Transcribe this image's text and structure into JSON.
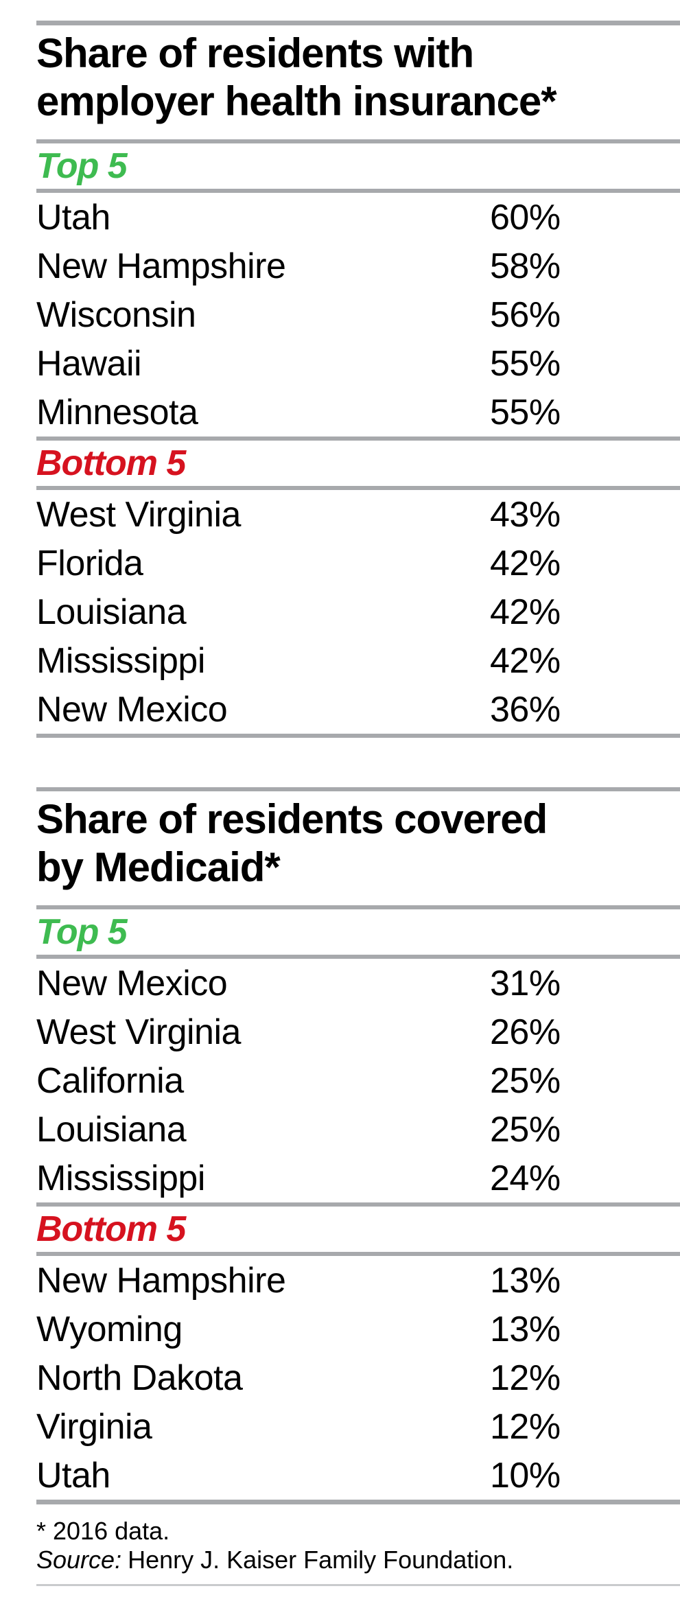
{
  "chart_data": [
    {
      "type": "table",
      "title": "Share of residents with employer health insurance*",
      "title_lines": [
        "Share of residents with",
        "employer health insurance*"
      ],
      "unit": "%",
      "groups": [
        {
          "label": "Top 5",
          "rows": [
            {
              "state": "Utah",
              "value": 60,
              "pct": "60%"
            },
            {
              "state": "New Hampshire",
              "value": 58,
              "pct": "58%"
            },
            {
              "state": "Wisconsin",
              "value": 56,
              "pct": "56%"
            },
            {
              "state": "Hawaii",
              "value": 55,
              "pct": "55%"
            },
            {
              "state": "Minnesota",
              "value": 55,
              "pct": "55%"
            }
          ]
        },
        {
          "label": "Bottom 5",
          "rows": [
            {
              "state": "West Virginia",
              "value": 43,
              "pct": "43%"
            },
            {
              "state": "Florida",
              "value": 42,
              "pct": "42%"
            },
            {
              "state": "Louisiana",
              "value": 42,
              "pct": "42%"
            },
            {
              "state": "Mississippi",
              "value": 42,
              "pct": "42%"
            },
            {
              "state": "New Mexico",
              "value": 36,
              "pct": "36%"
            }
          ]
        }
      ]
    },
    {
      "type": "table",
      "title": "Share of residents covered by Medicaid*",
      "title_lines": [
        "Share of residents covered",
        "by Medicaid*"
      ],
      "unit": "%",
      "groups": [
        {
          "label": "Top 5",
          "rows": [
            {
              "state": "New Mexico",
              "value": 31,
              "pct": "31%"
            },
            {
              "state": "West Virginia",
              "value": 26,
              "pct": "26%"
            },
            {
              "state": "California",
              "value": 25,
              "pct": "25%"
            },
            {
              "state": "Louisiana",
              "value": 25,
              "pct": "25%"
            },
            {
              "state": "Mississippi",
              "value": 24,
              "pct": "24%"
            }
          ]
        },
        {
          "label": "Bottom 5",
          "rows": [
            {
              "state": "New Hampshire",
              "value": 13,
              "pct": "13%"
            },
            {
              "state": "Wyoming",
              "value": 13,
              "pct": "13%"
            },
            {
              "state": "North Dakota",
              "value": 12,
              "pct": "12%"
            },
            {
              "state": "Virginia",
              "value": 12,
              "pct": "12%"
            },
            {
              "state": "Utah",
              "value": 10,
              "pct": "10%"
            }
          ]
        }
      ]
    }
  ],
  "footnotes": {
    "note": "* 2016 data.",
    "source_label": "Source:",
    "source_text": "Henry J. Kaiser Family Foundation."
  },
  "colors": {
    "top_label": "#3ebb50",
    "bottom_label": "#d6121f",
    "rule": "#a7a9ac",
    "light_rule": "#c9cbcd",
    "text": "#000000"
  }
}
